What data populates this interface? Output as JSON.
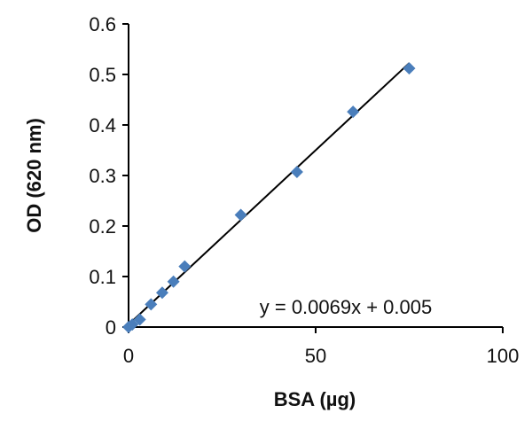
{
  "chart_data": {
    "type": "scatter",
    "xlabel": "BSA (µg)",
    "ylabel": "OD (620 nm)",
    "xlim": [
      0,
      100
    ],
    "ylim": [
      0,
      0.6
    ],
    "x_ticks": [
      0,
      50,
      100
    ],
    "y_ticks": [
      0,
      0.1,
      0.2,
      0.3,
      0.4,
      0.5,
      0.6
    ],
    "x_tick_labels": [
      "0",
      "50",
      "100"
    ],
    "y_tick_labels": [
      "0",
      "0.1",
      "0.2",
      "0.3",
      "0.4",
      "0.5",
      "0.6"
    ],
    "grid": false,
    "legend": "none",
    "marker_color": "#4a7ebb",
    "points": [
      {
        "x": 0,
        "y": 0.0
      },
      {
        "x": 1,
        "y": 0.005
      },
      {
        "x": 3,
        "y": 0.015
      },
      {
        "x": 6,
        "y": 0.045
      },
      {
        "x": 9,
        "y": 0.068
      },
      {
        "x": 12,
        "y": 0.09
      },
      {
        "x": 15,
        "y": 0.12
      },
      {
        "x": 30,
        "y": 0.222
      },
      {
        "x": 45,
        "y": 0.307
      },
      {
        "x": 60,
        "y": 0.426
      },
      {
        "x": 75,
        "y": 0.512
      }
    ],
    "trendline": {
      "slope": 0.0069,
      "intercept": 0.005,
      "x_range": [
        0,
        75
      ],
      "color": "#000000",
      "equation": "y = 0.0069x + 0.005"
    }
  }
}
